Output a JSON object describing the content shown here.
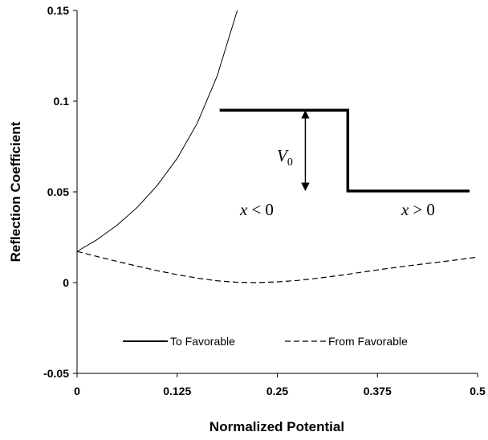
{
  "chart_data": {
    "type": "line",
    "xlabel": "Normalized Potential",
    "ylabel": "Reflection Coefficient",
    "xlim": [
      0,
      0.5
    ],
    "ylim": [
      -0.05,
      0.15
    ],
    "x_ticks": [
      0,
      0.125,
      0.25,
      0.375,
      0.5
    ],
    "x_tick_labels": [
      "0",
      "0.125",
      "0.25",
      "0.375",
      "0.5"
    ],
    "y_ticks": [
      -0.05,
      0,
      0.05,
      0.1,
      0.15
    ],
    "y_tick_labels": [
      "-0.05",
      "0",
      "0.05",
      "0.1",
      "0.15"
    ],
    "grid": false,
    "legend_position": "bottom",
    "series": [
      {
        "name": "To Favorable",
        "style": "solid",
        "x": [
          0,
          0.025,
          0.05,
          0.075,
          0.1,
          0.125,
          0.15,
          0.175,
          0.2
        ],
        "y": [
          0.0172,
          0.0237,
          0.0317,
          0.0414,
          0.0535,
          0.0685,
          0.0878,
          0.114,
          0.15
        ]
      },
      {
        "name": "From Favorable",
        "style": "dashed",
        "x": [
          0,
          0.025,
          0.05,
          0.075,
          0.1,
          0.125,
          0.15,
          0.175,
          0.2,
          0.225,
          0.25,
          0.275,
          0.3,
          0.325,
          0.35,
          0.375,
          0.4,
          0.425,
          0.45,
          0.475,
          0.5
        ],
        "y": [
          0.0172,
          0.0144,
          0.0117,
          0.0091,
          0.0066,
          0.0044,
          0.0025,
          0.001,
          0.0002,
          0.0,
          0.0004,
          0.0012,
          0.0024,
          0.0038,
          0.0054,
          0.007,
          0.0085,
          0.0099,
          0.0112,
          0.0126,
          0.0141
        ]
      }
    ],
    "inset": {
      "labels": {
        "v0_main": "V",
        "v0_sub": "0",
        "left_x": "x",
        "left_rel": "< 0",
        "right_x": "x",
        "right_rel": "> 0"
      },
      "step_path": [
        [
          0.178,
          0.095
        ],
        [
          0.338,
          0.095
        ],
        [
          0.338,
          0.0505
        ],
        [
          0.49,
          0.0505
        ]
      ],
      "arrow": {
        "x": 0.285,
        "y_top": 0.095,
        "y_bottom": 0.0505
      }
    }
  }
}
